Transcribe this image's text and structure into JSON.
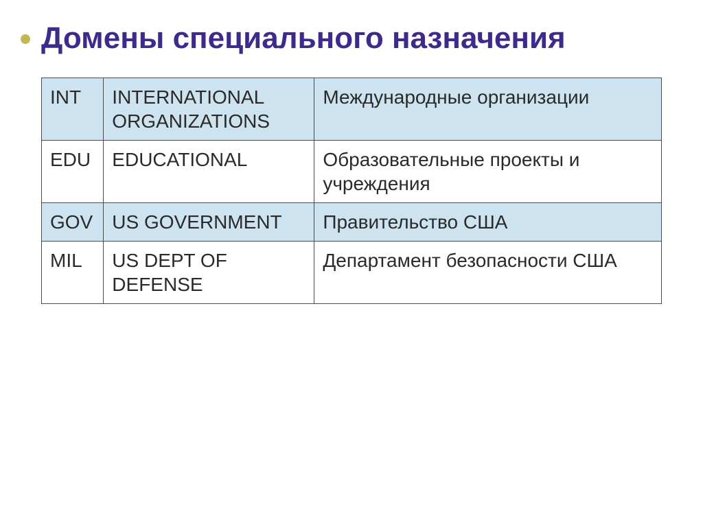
{
  "slide": {
    "title": "Домены специального назначения",
    "title_color": "#3e2a8c",
    "title_fontsize": 44,
    "title_fontweight": "bold",
    "bullet_color": "#c2b954",
    "background_color": "#ffffff",
    "table": {
      "type": "table",
      "border_color": "#4a4a4a",
      "cell_fontsize": 28,
      "cell_text_color": "#2a2a2a",
      "row_alt_bg": "#cde3ef",
      "row_plain_bg": "#ffffff",
      "columns": [
        {
          "key": "code",
          "width_pct": 10
        },
        {
          "key": "english",
          "width_pct": 34
        },
        {
          "key": "russian",
          "width_pct": 56
        }
      ],
      "rows": [
        {
          "code": "INT",
          "english": "INTERNATIONAL ORGANIZATIONS",
          "russian": "Международные организации",
          "alt": true
        },
        {
          "code": "EDU",
          "english": "EDUCATIONAL",
          "russian": "Образовательные проекты и учреждения",
          "alt": false
        },
        {
          "code": "GOV",
          "english": "US GOVERNMENT",
          "russian": "Правительство США",
          "alt": true
        },
        {
          "code": "MIL",
          "english": "US DEPT OF DEFENSE",
          "russian": "Департамент безопасности США",
          "alt": false
        }
      ]
    }
  }
}
